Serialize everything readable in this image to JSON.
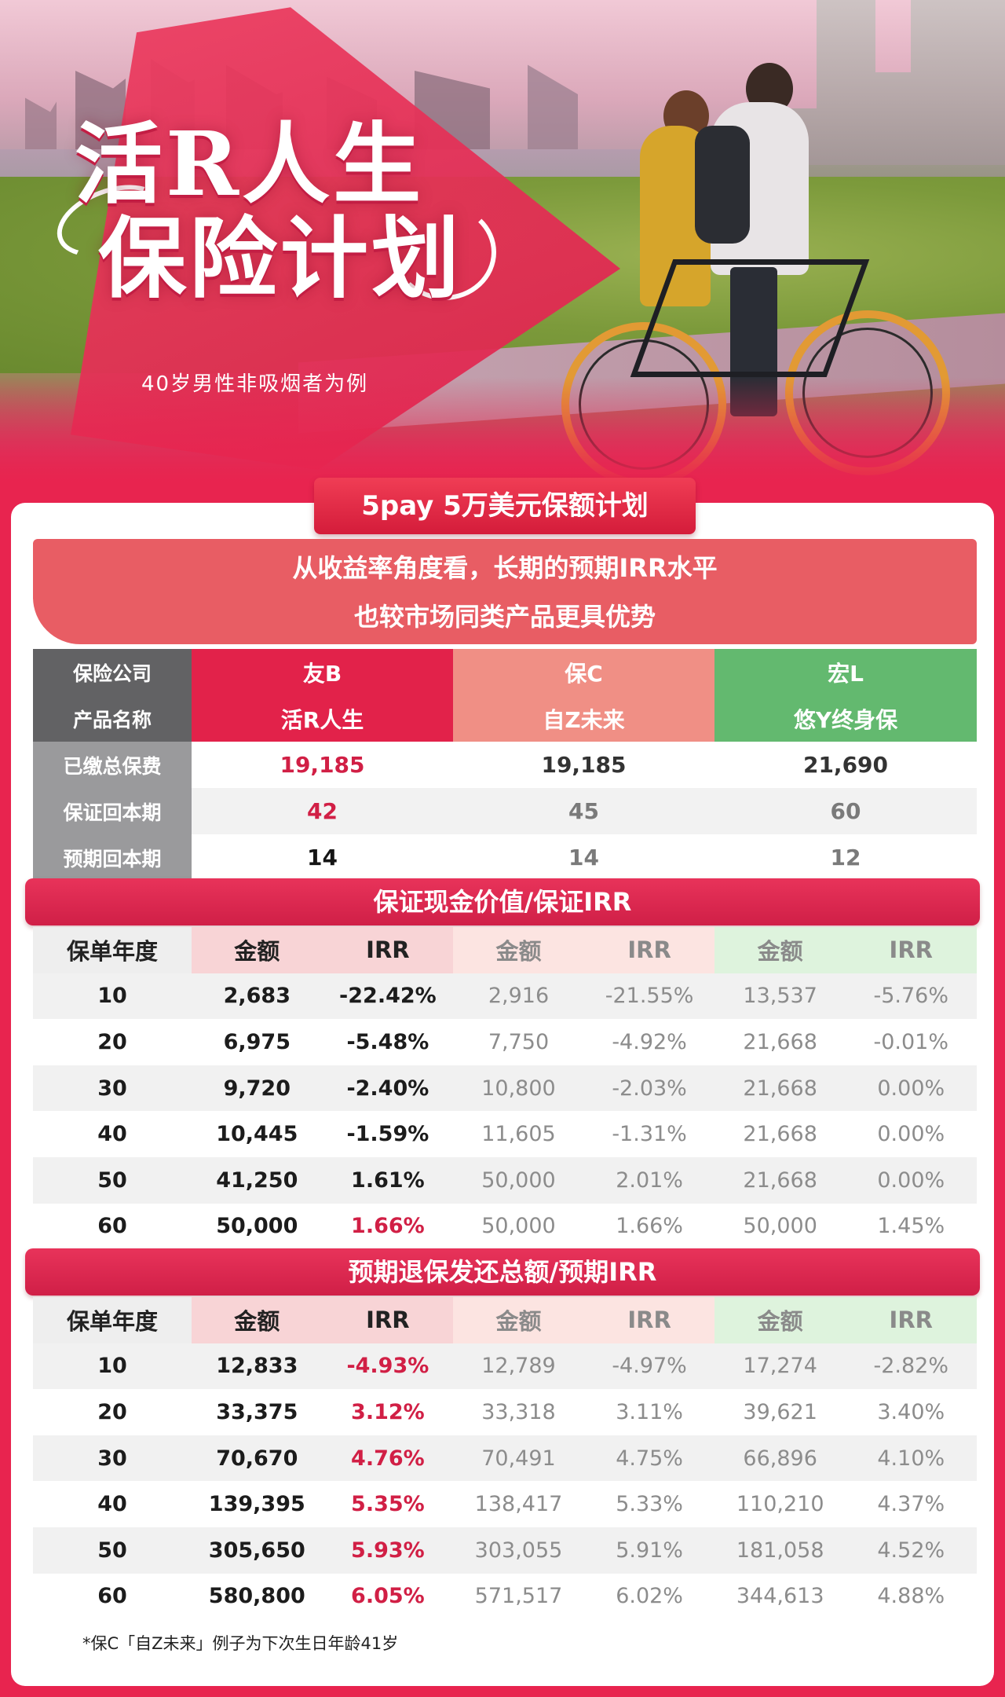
{
  "hero": {
    "title_line1": "活R人生",
    "title_line2": "保险计划",
    "subtitle": "40岁男性非吸烟者为例"
  },
  "plan_badge": "5pay 5万美元保额计划",
  "callout": {
    "line1": "从收益率角度看，长期的预期IRR水平",
    "line2": "也较市场同类产品更具优势"
  },
  "comparison": {
    "rows": [
      {
        "label": "保险公司",
        "a": "友B",
        "b": "保C",
        "c": "宏L"
      },
      {
        "label": "产品名称",
        "a": "活R人生",
        "b": "自Z未来",
        "c": "悠Y终身保"
      },
      {
        "label": "已缴总保费",
        "a": "19,185",
        "b": "19,185",
        "c": "21,690"
      },
      {
        "label": "保证回本期",
        "a": "42",
        "b": "45",
        "c": "60"
      },
      {
        "label": "预期回本期",
        "a": "14",
        "b": "14",
        "c": "12"
      }
    ]
  },
  "section1": {
    "title": "保证现金价值/保证IRR",
    "headers": [
      "保单年度",
      "金额",
      "IRR",
      "金额",
      "IRR",
      "金额",
      "IRR"
    ],
    "rows": [
      [
        "10",
        "2,683",
        "-22.42%",
        "2,916",
        "-21.55%",
        "13,537",
        "-5.76%"
      ],
      [
        "20",
        "6,975",
        "-5.48%",
        "7,750",
        "-4.92%",
        "21,668",
        "-0.01%"
      ],
      [
        "30",
        "9,720",
        "-2.40%",
        "10,800",
        "-2.03%",
        "21,668",
        "0.00%"
      ],
      [
        "40",
        "10,445",
        "-1.59%",
        "11,605",
        "-1.31%",
        "21,668",
        "0.00%"
      ],
      [
        "50",
        "41,250",
        "1.61%",
        "50,000",
        "2.01%",
        "21,668",
        "0.00%"
      ],
      [
        "60",
        "50,000",
        "1.66%",
        "50,000",
        "1.66%",
        "50,000",
        "1.45%"
      ]
    ]
  },
  "section2": {
    "title": "预期退保发还总额/预期IRR",
    "headers": [
      "保单年度",
      "金额",
      "IRR",
      "金额",
      "IRR",
      "金额",
      "IRR"
    ],
    "rows": [
      [
        "10",
        "12,833",
        "-4.93%",
        "12,789",
        "-4.97%",
        "17,274",
        "-2.82%"
      ],
      [
        "20",
        "33,375",
        "3.12%",
        "33,318",
        "3.11%",
        "39,621",
        "3.40%"
      ],
      [
        "30",
        "70,670",
        "4.76%",
        "70,491",
        "4.75%",
        "66,896",
        "4.10%"
      ],
      [
        "40",
        "139,395",
        "5.35%",
        "138,417",
        "5.33%",
        "110,210",
        "4.37%"
      ],
      [
        "50",
        "305,650",
        "5.93%",
        "303,055",
        "5.91%",
        "181,058",
        "4.52%"
      ],
      [
        "60",
        "580,800",
        "6.05%",
        "571,517",
        "6.02%",
        "344,613",
        "4.88%"
      ]
    ]
  },
  "footnote": "*保C「自Z未来」例子为下次生日年龄41岁",
  "colors": {
    "brand_red": "#e2224a",
    "company_b": "#f08f85",
    "company_c": "#63b96f",
    "highlight_text": "#d11f45"
  }
}
